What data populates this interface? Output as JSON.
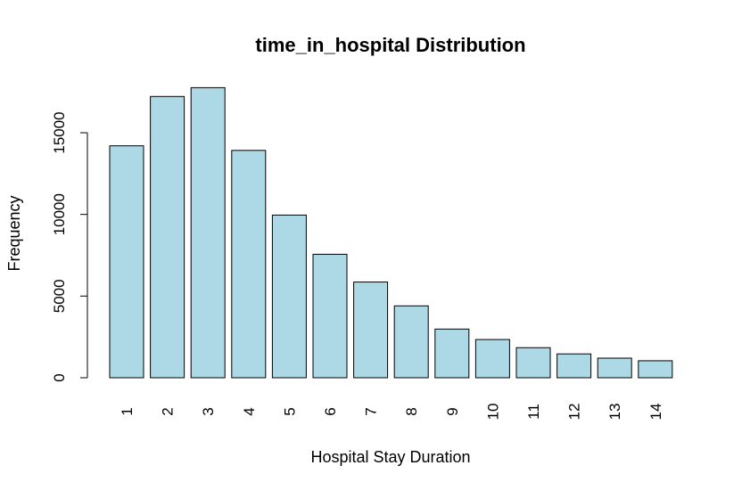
{
  "chart_data": {
    "type": "bar",
    "title": "time_in_hospital Distribution",
    "xlabel": "Hospital Stay Duration",
    "ylabel": "Frequency",
    "categories": [
      "1",
      "2",
      "3",
      "4",
      "5",
      "6",
      "7",
      "8",
      "9",
      "10",
      "11",
      "12",
      "13",
      "14"
    ],
    "values": [
      14200,
      17220,
      17760,
      13920,
      9960,
      7560,
      5860,
      4400,
      2980,
      2340,
      1840,
      1460,
      1200,
      1040
    ],
    "ylim": [
      0,
      18000
    ],
    "yticks": [
      "0",
      "5000",
      "10000",
      "15000"
    ],
    "grid": false,
    "legend": "none",
    "bar_color": "#add8e6",
    "bar_border_color": "#000000"
  }
}
